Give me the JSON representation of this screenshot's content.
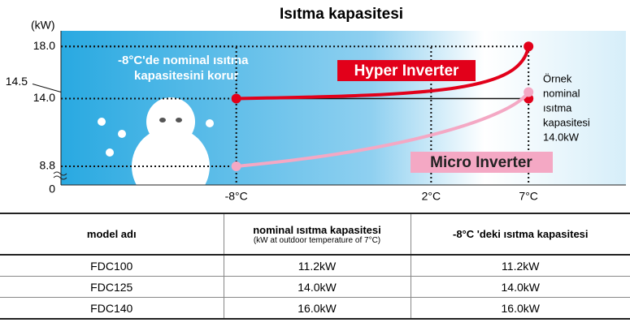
{
  "chart_data": {
    "type": "line",
    "title": "Isıtma kapasitesi",
    "y_unit": "(kW)",
    "xlim": [
      -17,
      12
    ],
    "xticks": [
      {
        "value": -8,
        "label": "-8°C"
      },
      {
        "value": 2,
        "label": "2°C"
      },
      {
        "value": 7,
        "label": "7°C"
      }
    ],
    "ylim": [
      0,
      19.2
    ],
    "yticks": [
      0,
      8.8,
      {
        "value": 14,
        "label": "14.0"
      },
      14.5,
      {
        "value": 18,
        "label": "18.0"
      }
    ],
    "series": [
      {
        "name": "Hyper Inverter",
        "color": "#e2001a",
        "x": [
          -8,
          7
        ],
        "values": [
          14,
          18
        ]
      },
      {
        "name": "Micro Inverter",
        "color": "#f4a8c4",
        "x": [
          -8,
          7
        ],
        "values": [
          8.8,
          14.5
        ]
      }
    ],
    "annotation_point": {
      "x": 7,
      "y": 14
    },
    "annotations": [
      "-8°C'de nominal ısıtma",
      "kapasitesini korur",
      "Örnek",
      "nominal",
      "ısıtma",
      "kapasitesi",
      "14.0kW"
    ]
  },
  "table": {
    "header": [
      "model adı",
      "nominal ısıtma kapasitesi",
      "-8°C 'deki ısıtma kapasitesi"
    ],
    "header_note": "(kW at outdoor temperature of 7°C)",
    "rows": [
      [
        "FDC100",
        "11.2kW",
        "11.2kW"
      ],
      [
        "FDC125",
        "14.0kW",
        "14.0kW"
      ],
      [
        "FDC140",
        "16.0kW",
        "16.0kW"
      ]
    ]
  }
}
